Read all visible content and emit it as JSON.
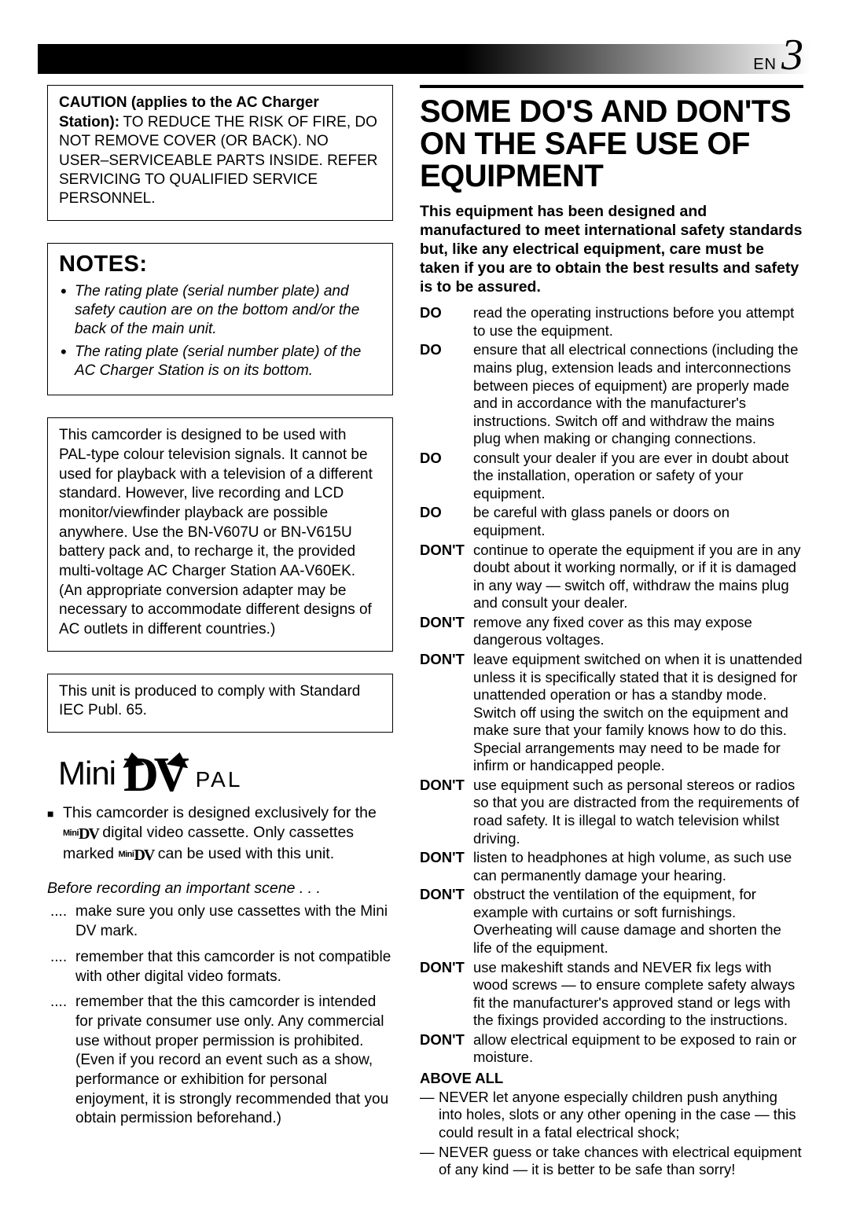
{
  "page": {
    "lang": "EN",
    "number": "3"
  },
  "header_gradient": {
    "from": "#000000",
    "to": "#ffffff"
  },
  "caution": {
    "title": "CAUTION (applies to the AC Charger Station):",
    "body": "TO REDUCE THE RISK OF FIRE, DO NOT REMOVE COVER (OR BACK). NO USER–SERVICEABLE PARTS INSIDE. REFER SERVICING TO QUALIFIED SERVICE PERSONNEL."
  },
  "notes": {
    "title": "NOTES:",
    "items": [
      "The rating plate (serial number plate) and safety caution are on the bottom and/or the back of the main unit.",
      "The rating plate (serial number plate) of the AC Charger Station is on its bottom."
    ]
  },
  "pal_box": "This camcorder is designed to be used with PAL-type colour television signals. It cannot be used for playback with a television of a different standard. However, live recording and LCD monitor/viewfinder playback are possible anywhere. Use the BN-V607U or BN-V615U battery pack and, to recharge it, the provided multi-voltage AC Charger Station AA-V60EK. (An appropriate conversion adapter may be necessary to accommodate different designs of AC outlets in different countries.)",
  "iec_box": "This unit is produced to comply with Standard IEC Publ. 65.",
  "logo": {
    "mini": "Mini",
    "dv": "DV",
    "pal": "PAL"
  },
  "cassette_para": {
    "pre": "This camcorder is designed exclusively for the ",
    "mid": " digital video cassette. Only cassettes marked ",
    "post": " can be used with this unit."
  },
  "before_recording": "Before recording an important scene . . .",
  "dot_items": [
    "make sure you only use cassettes with the Mini DV mark.",
    "remember that this camcorder is not compatible with other digital video formats.",
    "remember that the this camcorder is intended for private consumer use only. Any commercial use without proper permission is prohibited. (Even if you record an event such as a show, performance or exhibition for personal enjoyment, it is strongly recommended that you obtain permission beforehand.)"
  ],
  "right": {
    "title": "SOME DO'S AND DON'TS ON THE SAFE USE OF EQUIPMENT",
    "intro": "This equipment has been designed and manufactured to meet international safety standards but, like any electrical equipment, care must be taken if you are to obtain the best results and safety is to be assured.",
    "rows": [
      {
        "label": "DO",
        "text": "read the operating instructions before you attempt to use the equipment."
      },
      {
        "label": "DO",
        "text": "ensure that all electrical connections (including the mains plug, extension leads and interconnections between pieces of equipment) are properly made and in accordance with the manufacturer's instructions. Switch off and withdraw the mains plug when making or changing connections."
      },
      {
        "label": "DO",
        "text": "consult your dealer if you are ever in doubt about the installation, operation or safety of your equipment."
      },
      {
        "label": "DO",
        "text": "be careful with glass panels or doors on equipment."
      },
      {
        "label": "DON'T",
        "text": "continue to operate the equipment if you are in any doubt about it working normally, or if it is damaged in any way — switch off, withdraw the mains plug and consult your dealer."
      },
      {
        "label": "DON'T",
        "text": "remove any fixed cover as this may expose dangerous voltages."
      },
      {
        "label": "DON'T",
        "text": "leave equipment switched on when it is unattended unless it is specifically stated that it is designed for unattended operation or has a standby mode. Switch off using the switch on the equipment and make sure that your family knows how to do this. Special arrangements may need to be made for infirm or handicapped people."
      },
      {
        "label": "DON'T",
        "text": "use equipment such as personal stereos or radios so that you are distracted from the requirements of road safety. It is illegal to watch television whilst driving."
      },
      {
        "label": "DON'T",
        "text": "listen to headphones at high volume, as such use can permanently damage your hearing."
      },
      {
        "label": "DON'T",
        "text": "obstruct the ventilation of the equipment, for example with curtains or soft furnishings. Overheating will cause damage and shorten the life of the equipment."
      },
      {
        "label": "DON'T",
        "text": "use makeshift stands and NEVER fix legs with wood screws — to ensure complete safety always fit the manufacturer's approved stand or legs with the fixings provided according to the instructions."
      },
      {
        "label": "DON'T",
        "text": "allow electrical equipment to be exposed to rain or moisture."
      }
    ],
    "above_all": "ABOVE ALL",
    "dash_items": [
      "NEVER let anyone especially children push anything into holes, slots or any other opening in the case — this could result in a fatal electrical shock;",
      "NEVER guess or take chances with electrical equipment of any kind — it is better to be safe than sorry!"
    ]
  }
}
